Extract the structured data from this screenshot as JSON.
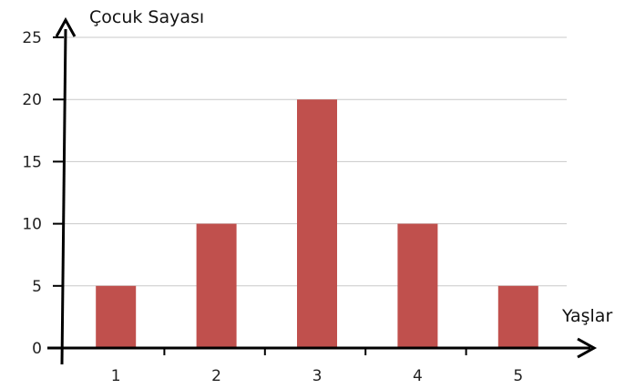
{
  "chart_data": {
    "type": "bar",
    "title": "",
    "xlabel": "Yaşlar",
    "ylabel": "Çocuk Sayası",
    "categories": [
      "1",
      "2",
      "3",
      "4",
      "5"
    ],
    "values": [
      5,
      10,
      20,
      10,
      5
    ],
    "ylim": [
      0,
      25
    ],
    "yticks": [
      "0",
      "5",
      "10",
      "15",
      "20",
      "25"
    ],
    "grid": true,
    "legend": "none",
    "colors": {
      "bar": "#c0504d",
      "grid": "#c8c8c8",
      "axis": "#000000"
    }
  }
}
